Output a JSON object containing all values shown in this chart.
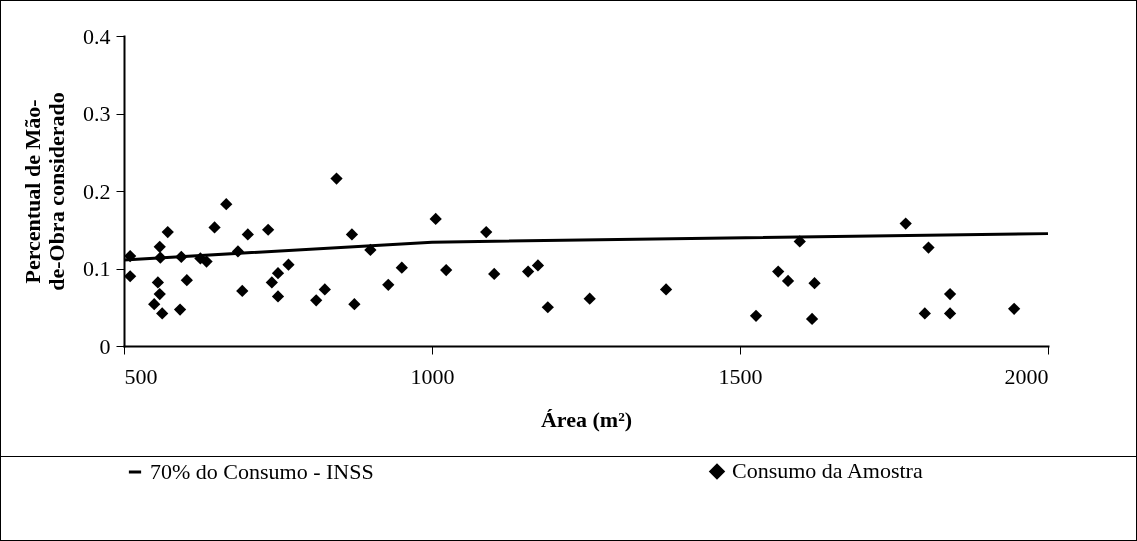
{
  "chart_data": {
    "type": "scatter",
    "xlabel": "Área (m²)",
    "ylabel": "Percentual de Mão-de-Obra considerado",
    "xlim": [
      500,
      2000
    ],
    "xticks": [
      500,
      1000,
      1500,
      2000
    ],
    "ylim": [
      0,
      0.4
    ],
    "yticks": [
      0,
      0.1,
      0.2,
      0.3,
      0.4
    ],
    "grid": false,
    "legend": "bottom",
    "series": [
      {
        "name": "70% do Consumo - INSS",
        "type": "line",
        "color": "#000000",
        "x": [
          500,
          1000,
          2000
        ],
        "values": [
          0.111,
          0.134,
          0.145
        ]
      },
      {
        "name": "Consumo da Amostra",
        "marker": "diamond",
        "color": "#000000",
        "x": [
          510,
          510,
          558,
          559,
          571,
          555,
          558,
          549,
          562,
          593,
          602,
          591,
          624,
          634,
          647,
          666,
          685,
          701,
          692,
          734,
          740,
          750,
          750,
          767,
          812,
          826,
          845,
          870,
          874,
          900,
          929,
          951,
          1006,
          1023,
          1088,
          1101,
          1156,
          1172,
          1188,
          1256,
          1380,
          1526,
          1562,
          1578,
          1597,
          1621,
          1617,
          1769,
          1806,
          1800,
          1841,
          1841,
          1945
        ],
        "values": [
          0.116,
          0.09,
          0.128,
          0.114,
          0.147,
          0.082,
          0.067,
          0.054,
          0.042,
          0.115,
          0.085,
          0.047,
          0.113,
          0.109,
          0.153,
          0.183,
          0.122,
          0.144,
          0.071,
          0.15,
          0.082,
          0.094,
          0.064,
          0.105,
          0.059,
          0.073,
          0.216,
          0.144,
          0.054,
          0.124,
          0.079,
          0.101,
          0.164,
          0.098,
          0.147,
          0.093,
          0.096,
          0.104,
          0.05,
          0.061,
          0.073,
          0.039,
          0.096,
          0.084,
          0.135,
          0.081,
          0.035,
          0.158,
          0.127,
          0.042,
          0.067,
          0.042,
          0.048
        ]
      }
    ]
  }
}
